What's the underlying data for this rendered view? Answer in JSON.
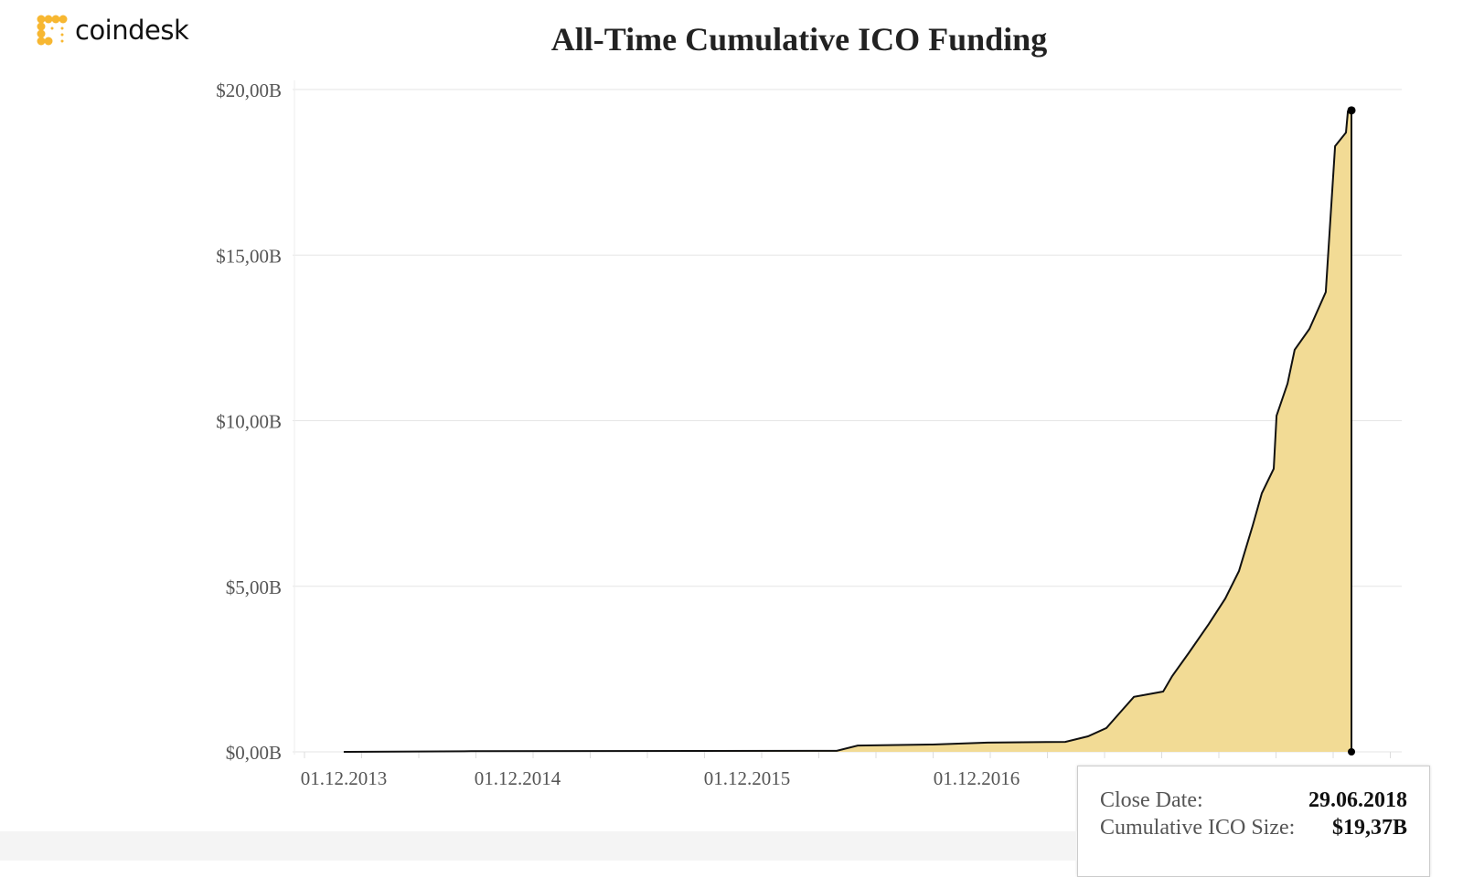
{
  "brand": {
    "name": "coindesk",
    "color": "#F7B731"
  },
  "chart_data": {
    "type": "area",
    "title": "All-Time Cumulative ICO Funding",
    "xlabel": "",
    "ylabel": "",
    "x_units": "decimal year",
    "y_units": "USD billions",
    "ylim": [
      0,
      20
    ],
    "xlim": [
      2013.6,
      2018.7
    ],
    "y_ticks": [
      0,
      5,
      10,
      15,
      20
    ],
    "y_tick_labels": [
      "$0,00B",
      "$5,00B",
      "$10,00B",
      "$15,00B",
      "$20,00B"
    ],
    "x_tick_labels": [
      "01.12.2013",
      "01.12.2014",
      "01.12.2015",
      "01.12.2016"
    ],
    "grid": true,
    "fill_color": "#F2DB95",
    "line_color": "#111111",
    "x": [
      2014.255,
      2014.79,
      2016.329,
      2016.417,
      2016.732,
      2016.963,
      2017.29,
      2017.386,
      2017.463,
      2017.521,
      2017.579,
      2017.702,
      2017.74,
      2017.809,
      2017.894,
      2017.963,
      2018.021,
      2018.079,
      2018.117,
      2018.167,
      2018.179,
      2018.225,
      2018.255,
      2018.317,
      2018.386,
      2018.425,
      2018.471,
      2018.479,
      2018.494
    ],
    "values": [
      0,
      0.02,
      0.03,
      0.19,
      0.22,
      0.28,
      0.3,
      0.47,
      0.72,
      1.19,
      1.66,
      1.82,
      2.29,
      2.98,
      3.86,
      4.63,
      5.46,
      6.84,
      7.81,
      8.55,
      10.15,
      11.12,
      12.14,
      12.77,
      13.88,
      18.29,
      18.7,
      19.34,
      19.37
    ]
  },
  "tooltip": {
    "close_date_label": "Close Date:",
    "close_date_value": "29.06.2018",
    "size_label": "Cumulative ICO Size:",
    "size_value": "$19,37B"
  }
}
